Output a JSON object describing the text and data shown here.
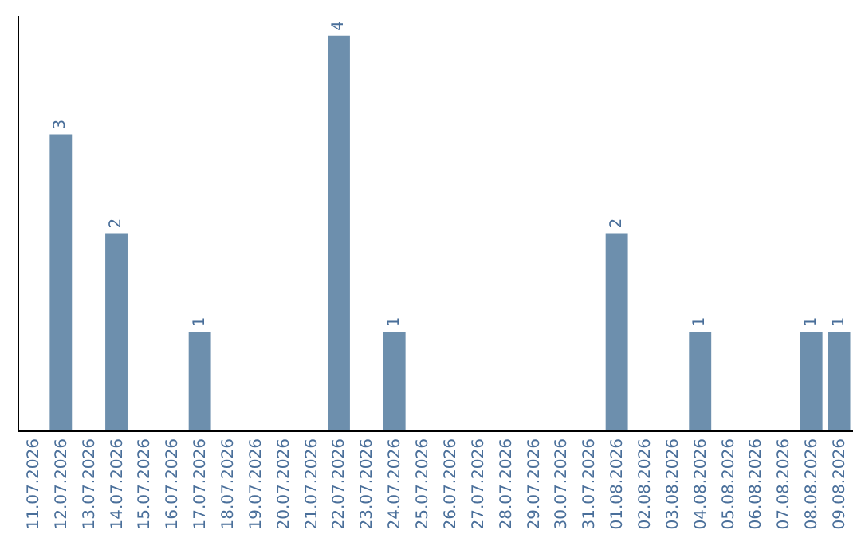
{
  "chart_data": {
    "type": "bar",
    "categories": [
      "11.07.2026",
      "12.07.2026",
      "13.07.2026",
      "14.07.2026",
      "15.07.2026",
      "16.07.2026",
      "17.07.2026",
      "18.07.2026",
      "19.07.2026",
      "20.07.2026",
      "21.07.2026",
      "22.07.2026",
      "23.07.2026",
      "24.07.2026",
      "25.07.2026",
      "26.07.2026",
      "27.07.2026",
      "28.07.2026",
      "29.07.2026",
      "30.07.2026",
      "31.07.2026",
      "01.08.2026",
      "02.08.2026",
      "03.08.2026",
      "04.08.2026",
      "05.08.2026",
      "06.08.2026",
      "07.08.2026",
      "08.08.2026",
      "09.08.2026"
    ],
    "values": [
      0,
      3,
      0,
      2,
      0,
      0,
      1,
      0,
      0,
      0,
      0,
      4,
      0,
      1,
      0,
      0,
      0,
      0,
      0,
      0,
      0,
      2,
      0,
      0,
      1,
      0,
      0,
      0,
      1,
      1
    ],
    "value_labels": [
      null,
      "3",
      null,
      "2",
      null,
      null,
      "1",
      null,
      null,
      null,
      null,
      "4",
      null,
      "1",
      null,
      null,
      null,
      null,
      null,
      null,
      null,
      "2",
      null,
      null,
      "1",
      null,
      null,
      null,
      "1",
      "1"
    ],
    "color": "#6d8fad",
    "ylim": [
      0,
      4.2
    ],
    "tick_labels": "x",
    "legend": false
  }
}
